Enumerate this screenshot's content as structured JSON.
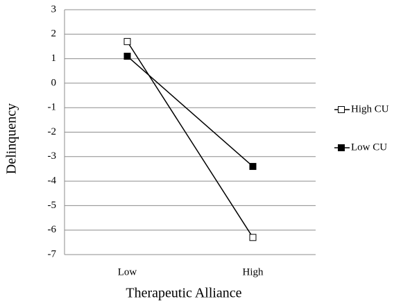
{
  "chart_data": {
    "type": "line",
    "x_label": "Therapeutic Alliance",
    "y_label": "Delinquency",
    "categories": [
      "Low",
      "High"
    ],
    "series": [
      {
        "name": "High CU",
        "color": "#000000",
        "marker_fill": "#ffffff",
        "values": [
          1.7,
          -6.3
        ]
      },
      {
        "name": "Low CU",
        "color": "#000000",
        "marker_fill": "#000000",
        "values": [
          1.1,
          -3.4
        ]
      }
    ],
    "ylim": [
      -7,
      3
    ],
    "yticks": [
      -7,
      -6,
      -5,
      -4,
      -3,
      -2,
      -1,
      0,
      1,
      2,
      3
    ],
    "grid": true,
    "legend": "right"
  }
}
